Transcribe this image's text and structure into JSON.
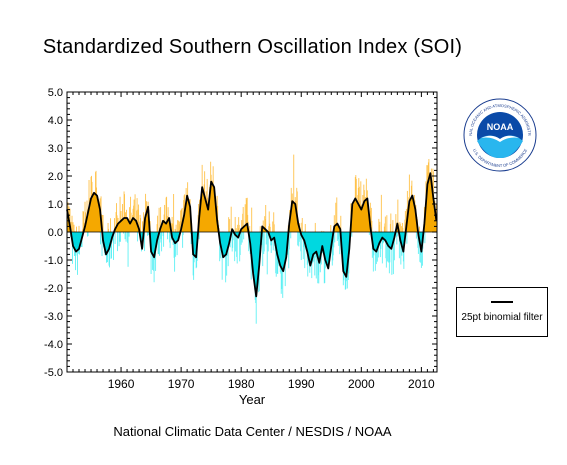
{
  "title": "Standardized Southern Oscillation Index (SOI)",
  "credit": "National Climatic Data Center / NESDIS / NOAA",
  "legend": {
    "filter_label": "25pt binomial filter"
  },
  "logo": {
    "text": "NOAA",
    "ring_top": "NATIONAL OCEANIC AND ATMOSPHERIC ADMINISTRATION",
    "ring_bottom": "U.S. DEPARTMENT OF COMMERCE"
  },
  "colors": {
    "positive": "#f5a800",
    "negative": "#00d8e0",
    "positive_light": "#ffc24a",
    "negative_light": "#5ef0f4",
    "line": "#000000"
  },
  "chart_data": {
    "type": "area",
    "title": "Standardized Southern Oscillation Index (SOI)",
    "xlabel": "Year",
    "ylabel": "",
    "xlim": [
      1951,
      2012.6
    ],
    "ylim": [
      -5,
      5
    ],
    "x_ticks": [
      1960,
      1970,
      1980,
      1990,
      2000,
      2010
    ],
    "y_ticks": [
      -5,
      -4,
      -3,
      -2,
      -1,
      0,
      1,
      2,
      3,
      4,
      5
    ],
    "y_tick_labels": [
      "-5.0",
      "-4.0",
      "-3.0",
      "-2.0",
      "-1.0",
      "0.0",
      "1.0",
      "2.0",
      "3.0",
      "4.0",
      "5.0"
    ],
    "series": [
      {
        "name": "25pt binomial filter",
        "x": [
          1951.0,
          1951.5,
          1952.0,
          1952.5,
          1953.0,
          1953.5,
          1954.0,
          1954.5,
          1955.0,
          1955.5,
          1956.0,
          1956.5,
          1957.0,
          1957.5,
          1958.0,
          1958.5,
          1959.0,
          1959.5,
          1960.0,
          1960.5,
          1961.0,
          1961.5,
          1962.0,
          1962.5,
          1963.0,
          1963.5,
          1964.0,
          1964.5,
          1965.0,
          1965.5,
          1966.0,
          1966.5,
          1967.0,
          1967.5,
          1968.0,
          1968.5,
          1969.0,
          1969.5,
          1970.0,
          1970.5,
          1971.0,
          1971.5,
          1972.0,
          1972.5,
          1973.0,
          1973.5,
          1974.0,
          1974.5,
          1975.0,
          1975.5,
          1976.0,
          1976.5,
          1977.0,
          1977.5,
          1978.0,
          1978.5,
          1979.0,
          1979.5,
          1980.0,
          1980.5,
          1981.0,
          1981.5,
          1982.0,
          1982.5,
          1983.0,
          1983.5,
          1984.0,
          1984.5,
          1985.0,
          1985.5,
          1986.0,
          1986.5,
          1987.0,
          1987.5,
          1988.0,
          1988.5,
          1989.0,
          1989.5,
          1990.0,
          1990.5,
          1991.0,
          1991.5,
          1992.0,
          1992.5,
          1993.0,
          1993.5,
          1994.0,
          1994.5,
          1995.0,
          1995.5,
          1996.0,
          1996.5,
          1997.0,
          1997.5,
          1998.0,
          1998.5,
          1999.0,
          1999.5,
          2000.0,
          2000.5,
          2001.0,
          2001.5,
          2002.0,
          2002.5,
          2003.0,
          2003.5,
          2004.0,
          2004.5,
          2005.0,
          2005.5,
          2006.0,
          2006.5,
          2007.0,
          2007.5,
          2008.0,
          2008.5,
          2009.0,
          2009.5,
          2010.0,
          2010.5,
          2011.0,
          2011.5,
          2012.0,
          2012.5
        ],
        "values": [
          0.8,
          0.2,
          -0.5,
          -0.7,
          -0.6,
          -0.2,
          0.2,
          0.7,
          1.2,
          1.4,
          1.3,
          0.8,
          -0.3,
          -0.8,
          -0.6,
          -0.2,
          0.1,
          0.3,
          0.4,
          0.5,
          0.5,
          0.3,
          0.5,
          0.4,
          0.1,
          -0.6,
          0.5,
          0.9,
          -0.7,
          -0.9,
          -0.3,
          0.1,
          0.4,
          0.3,
          0.5,
          -0.2,
          -0.4,
          -0.3,
          0.1,
          0.6,
          1.3,
          0.9,
          -0.8,
          -0.9,
          0.5,
          1.6,
          1.2,
          0.8,
          1.8,
          1.6,
          0.4,
          -0.4,
          -0.9,
          -0.8,
          -0.4,
          0.1,
          -0.1,
          -0.2,
          0.1,
          0.2,
          0.3,
          -0.4,
          -1.5,
          -2.3,
          -1.2,
          0.2,
          0.1,
          0.0,
          -0.3,
          -0.2,
          -0.8,
          -1.2,
          -1.4,
          -0.9,
          0.3,
          1.1,
          1.0,
          0.3,
          -0.1,
          -0.3,
          -0.7,
          -1.2,
          -0.8,
          -0.7,
          -1.1,
          -0.5,
          -1.0,
          -1.3,
          -0.5,
          0.2,
          0.3,
          0.1,
          -1.4,
          -1.6,
          -0.6,
          1.0,
          1.2,
          1.0,
          0.8,
          1.1,
          1.2,
          0.2,
          -0.6,
          -0.7,
          -0.4,
          -0.2,
          -0.3,
          -0.5,
          -0.6,
          -0.2,
          0.3,
          -0.3,
          -0.7,
          0.2,
          1.1,
          1.3,
          0.8,
          -0.1,
          -0.7,
          0.3,
          1.7,
          2.1,
          1.2,
          0.4
        ]
      }
    ],
    "monthly_bars": "dense monthly SOI values shown as thin vertical bars (positive orange, negative cyan)",
    "grid": false,
    "legend_position": "right"
  }
}
